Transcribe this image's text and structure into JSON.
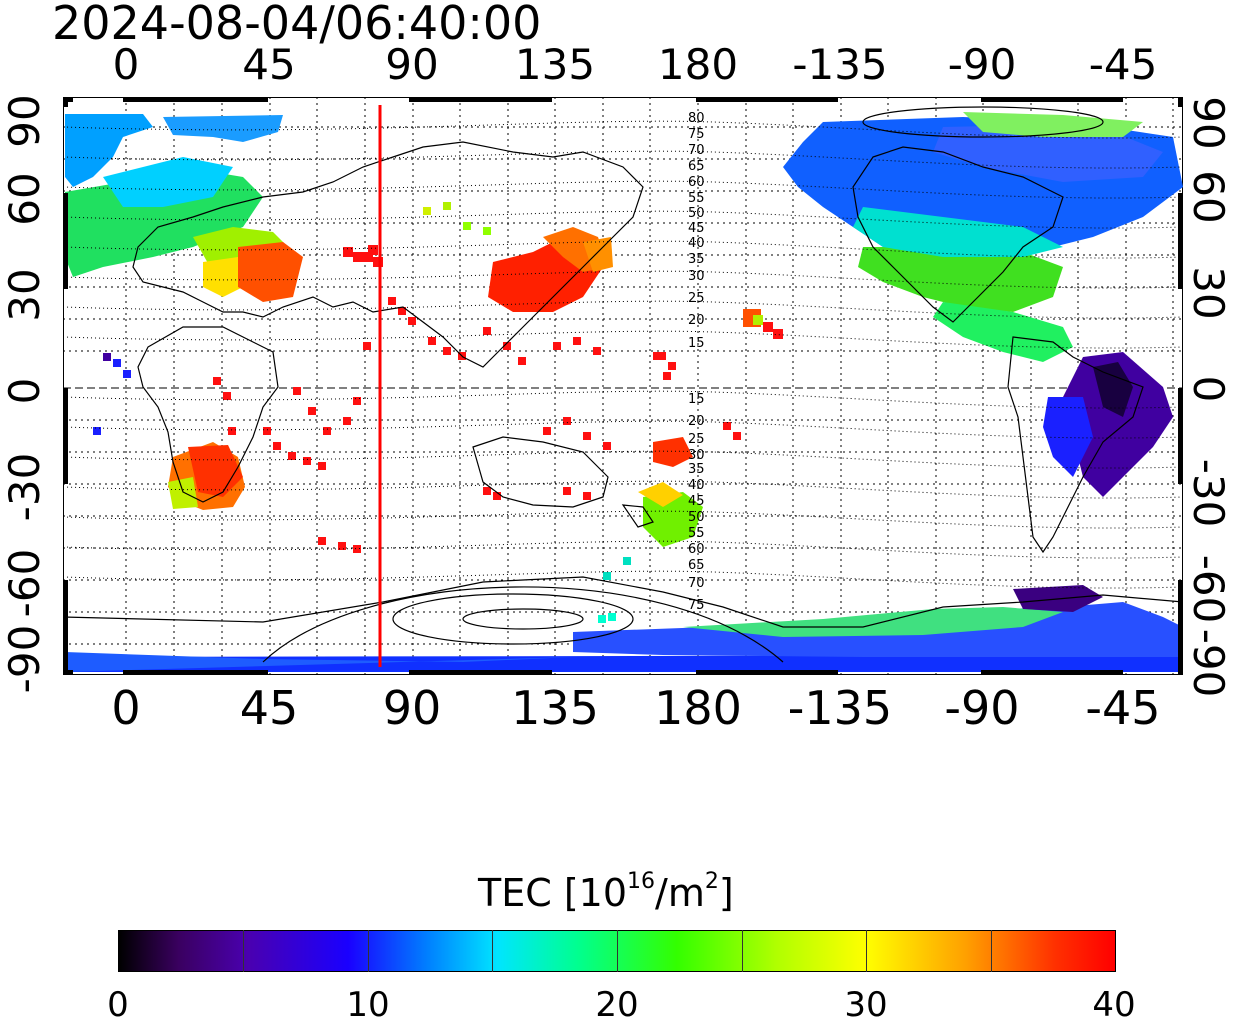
{
  "timestamp": "2024-08-04/06:40:00",
  "map": {
    "lon_ticks": [
      "0",
      "45",
      "90",
      "135",
      "180",
      "-135",
      "-90",
      "-45"
    ],
    "lat_ticks_left": [
      "90",
      "60",
      "30",
      "0",
      "-30",
      "-60",
      "-90"
    ],
    "lat_ticks_right": [
      "90",
      "60",
      "30",
      "0",
      "-30",
      "-60",
      "-90"
    ],
    "contour_labels_north": [
      "80",
      "75",
      "70",
      "65",
      "60",
      "55",
      "50",
      "45",
      "40",
      "35",
      "30",
      "25",
      "20",
      "15"
    ],
    "contour_labels_south": [
      "15",
      "20",
      "25",
      "30",
      "35",
      "40",
      "45",
      "50",
      "55",
      "60",
      "65",
      "70",
      "75"
    ],
    "marker_line_color": "#ff0000"
  },
  "colorbar": {
    "title_prefix": "TEC  [10",
    "title_exponent": "16",
    "title_middle": "/m",
    "title_exponent2": "2",
    "title_suffix": "]",
    "tick_labels": [
      "0",
      "10",
      "20",
      "30",
      "40"
    ],
    "min": 0,
    "max": 40,
    "colormap": [
      "#000000",
      "#4a00b0",
      "#1a00ff",
      "#00e5ff",
      "#33ff00",
      "#ffff00",
      "#ff0000"
    ]
  }
}
